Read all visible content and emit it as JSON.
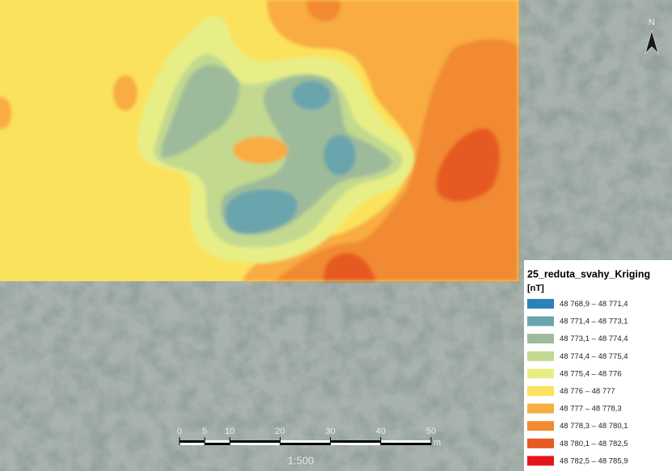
{
  "map": {
    "north_label": "N",
    "legend": {
      "title": "25_reduta_svahy_Kriging",
      "unit": "[nT]",
      "items": [
        {
          "label": "48 768,9 – 48 771,4",
          "color": "#2b83ba"
        },
        {
          "label": "48 771,4 – 48 773,1",
          "color": "#6aa4ad"
        },
        {
          "label": "48 773,1 – 48 774,4",
          "color": "#9dbb9a"
        },
        {
          "label": "48 774,4 – 48 775,4",
          "color": "#c2d98f"
        },
        {
          "label": "48 775,4 – 48 776",
          "color": "#e8ee86"
        },
        {
          "label": "48 776 – 48 777",
          "color": "#fbe25c"
        },
        {
          "label": "48 777 – 48 778,3",
          "color": "#f8ac42"
        },
        {
          "label": "48 778,3 – 48 780,1",
          "color": "#f18a30"
        },
        {
          "label": "48 780,1 – 48 782,5",
          "color": "#e65a24"
        },
        {
          "label": "48 782,5 – 48 785,9",
          "color": "#e3171b"
        }
      ]
    },
    "scale_bar": {
      "ticks": [
        0,
        5,
        10,
        20,
        30,
        40,
        50
      ],
      "unit": "m",
      "ratio": "1:500"
    }
  }
}
